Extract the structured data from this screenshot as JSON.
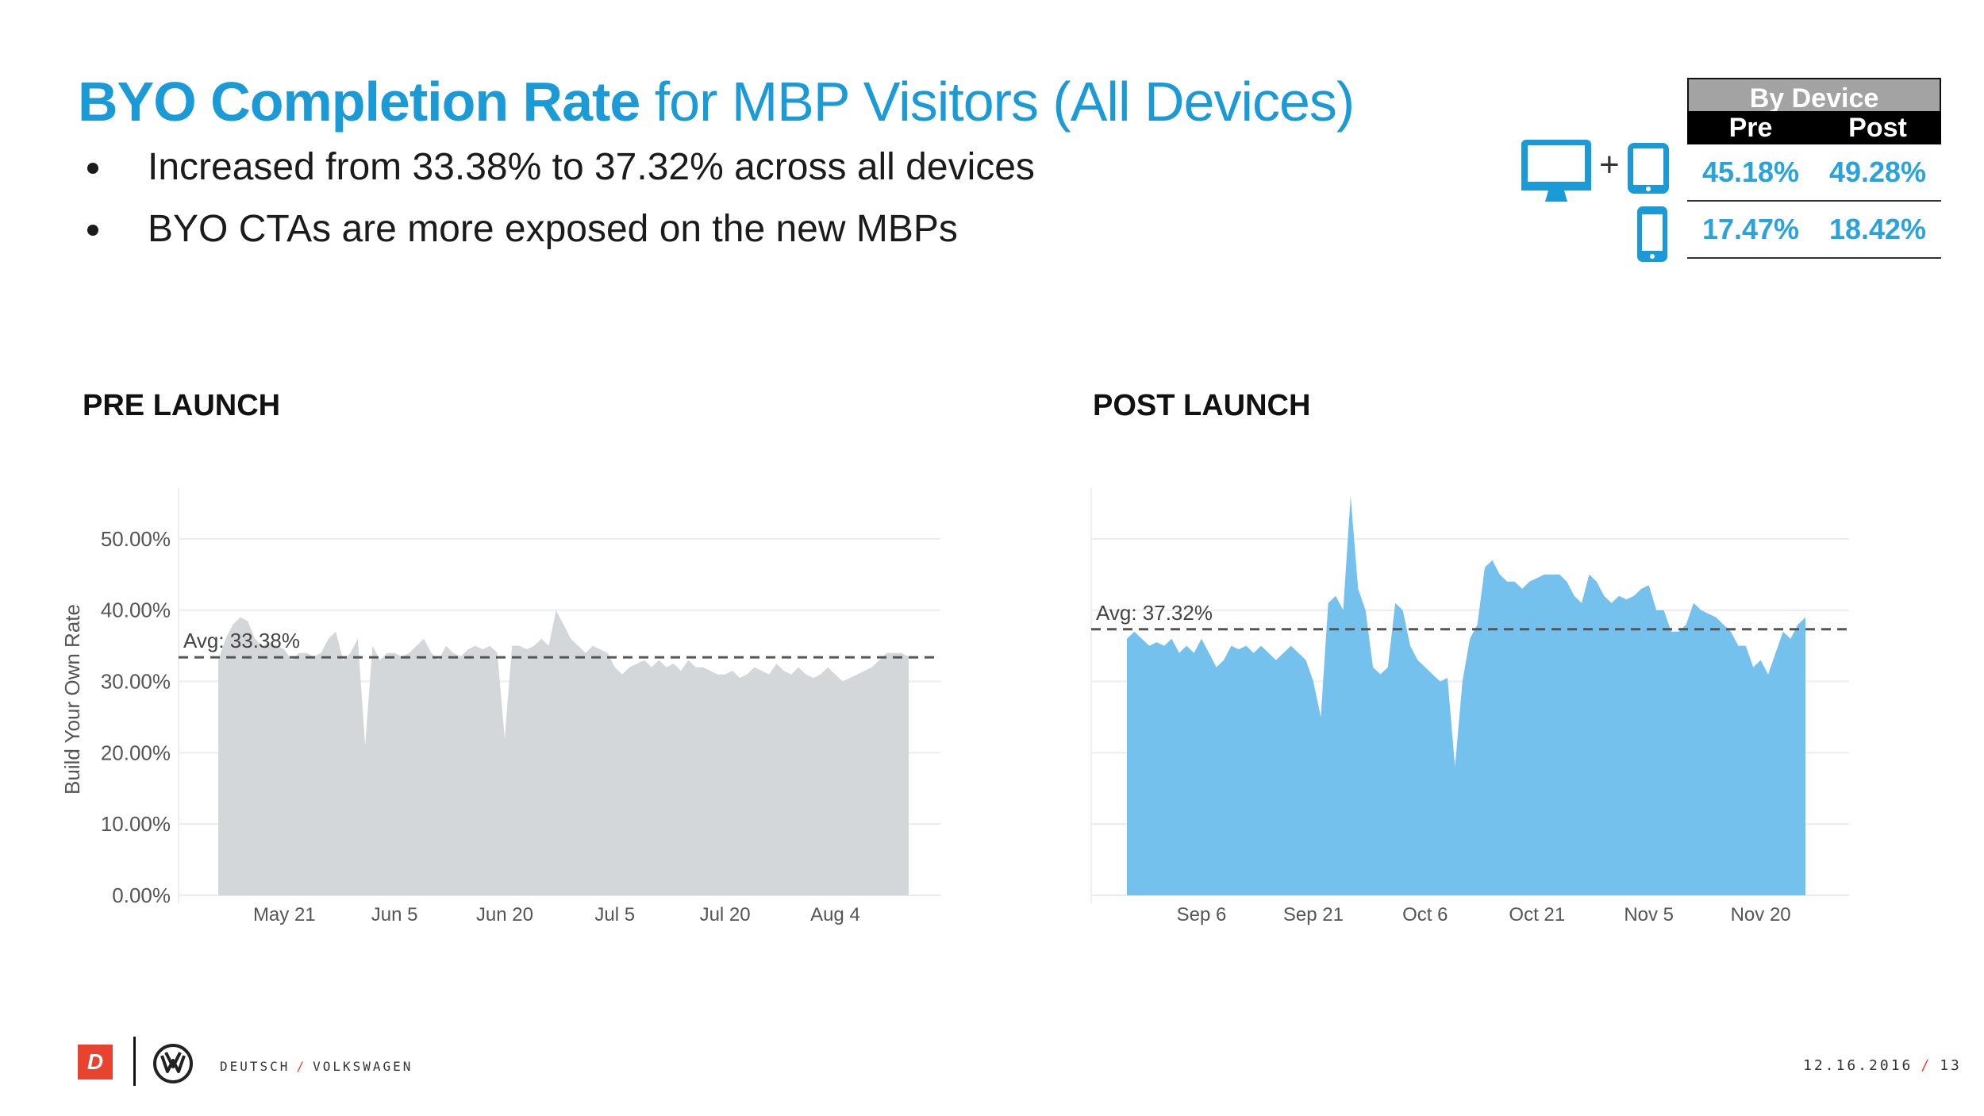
{
  "header": {
    "title_bold": "BYO Completion Rate",
    "title_rest": " for MBP Visitors (All Devices)"
  },
  "bullets": [
    "Increased from 33.38% to 37.32% across all devices",
    "BYO CTAs are more exposed on the new MBPs"
  ],
  "device_table": {
    "title": "By Device",
    "col_pre": "Pre",
    "col_post": "Post",
    "rows": [
      {
        "device": "desktop-plus-tablet",
        "pre": "45.18%",
        "post": "49.28%"
      },
      {
        "device": "mobile",
        "pre": "17.47%",
        "post": "18.42%"
      }
    ],
    "plus": "+"
  },
  "sections": {
    "pre": "PRE LAUNCH",
    "post": "POST LAUNCH"
  },
  "colors": {
    "accent": "#1a9ad6",
    "pre_fill": "#d3d7d9",
    "post_fill": "#74c1ee",
    "brand_red": "#e8432e"
  },
  "chart_data": [
    {
      "type": "area",
      "title": "PRE LAUNCH",
      "ylabel": "Build Your Own Rate",
      "ylim": [
        0,
        55
      ],
      "y_ticks": [
        "0.00%",
        "10.00%",
        "20.00%",
        "30.00%",
        "40.00%",
        "50.00%"
      ],
      "x_tick_labels": [
        "May 21",
        "Jun 5",
        "Jun 20",
        "Jul 5",
        "Jul 20",
        "Aug 4"
      ],
      "x_tick_positions": [
        9,
        24,
        39,
        54,
        69,
        84
      ],
      "avg": 33.38,
      "avg_label": "Avg: 33.38%",
      "fill": "#d3d7d9",
      "values": [
        33,
        36,
        38,
        39,
        38.5,
        36,
        35,
        35.5,
        35,
        34.5,
        33,
        34,
        34,
        33.5,
        34,
        36,
        37,
        33,
        34,
        36,
        21,
        35,
        33,
        34,
        34,
        33.5,
        34,
        35,
        36,
        34,
        33,
        35,
        34,
        33.5,
        34.5,
        35,
        34.5,
        35,
        34,
        22,
        35,
        35,
        34.5,
        35,
        36,
        35,
        40,
        38,
        36,
        35,
        34,
        35,
        34.5,
        34,
        32,
        31,
        32,
        32.5,
        33,
        32,
        33,
        32,
        32.5,
        31.5,
        33,
        32,
        32,
        31.5,
        31,
        31,
        31.5,
        30.5,
        31,
        32,
        31.5,
        31,
        32.5,
        31.5,
        31,
        32,
        31,
        30.5,
        31,
        32,
        31,
        30,
        30.5,
        31,
        31.5,
        32,
        33,
        34,
        34,
        34,
        33.5
      ]
    },
    {
      "type": "area",
      "title": "POST LAUNCH",
      "ylabel": "",
      "ylim": [
        0,
        55
      ],
      "x_tick_labels": [
        "Sep 6",
        "Sep 21",
        "Oct 6",
        "Oct 21",
        "Nov 5",
        "Nov 20"
      ],
      "x_tick_positions": [
        10,
        25,
        40,
        55,
        70,
        85
      ],
      "avg": 37.32,
      "avg_label": "Avg: 37.32%",
      "fill": "#74c1ee",
      "values": [
        36,
        37,
        36,
        35,
        35.5,
        35,
        36,
        34,
        35,
        34,
        36,
        34,
        32,
        33,
        35,
        34.5,
        35,
        34,
        35,
        34,
        33,
        34,
        35,
        34,
        33,
        30,
        25,
        41,
        42,
        40,
        56,
        43,
        40,
        32,
        31,
        32,
        41,
        40,
        35,
        33,
        32,
        31,
        30,
        30.5,
        18,
        30,
        36,
        38,
        46,
        47,
        45,
        44,
        44,
        43,
        44,
        44.5,
        45,
        45,
        45,
        44,
        42,
        41,
        45,
        44,
        42,
        41,
        42,
        41.5,
        42,
        43,
        43.5,
        40,
        40,
        37,
        37,
        38,
        41,
        40,
        39.5,
        39,
        38,
        37,
        35,
        35,
        32,
        33,
        31,
        34,
        37,
        36,
        38,
        39
      ]
    }
  ],
  "footer": {
    "logo_letter": "D",
    "brand_left": "DEUTSCH",
    "brand_slash": "/",
    "brand_right": "VOLKSWAGEN",
    "date": "12.16.2016",
    "date_slash": "/",
    "page": "13"
  }
}
